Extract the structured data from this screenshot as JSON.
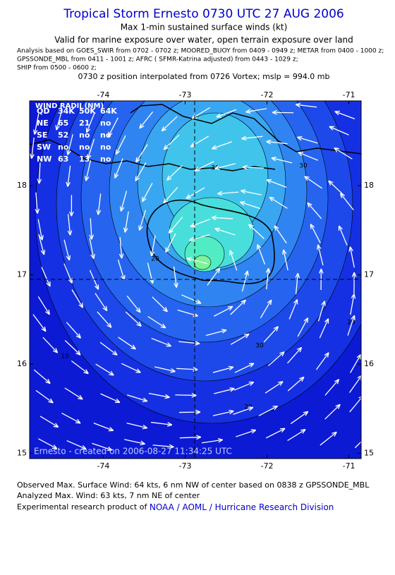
{
  "header": {
    "title": "Tropical Storm Ernesto 0730 UTC 27 AUG 2006",
    "subtitle": "Max 1-min sustained surface winds (kt)",
    "valid": "Valid for marine exposure over water, open terrain exposure over land",
    "analysis": [
      "Analysis based on  GOES_SWIR from 0702 - 0702 z;  MOORED_BUOY from 0409 - 0949 z;  METAR from 0400 - 1000 z;",
      "GPSSONDE_MBL from 0411 - 1001 z;  AFRC ( SFMR-Katrina adjusted) from 0443 - 1029 z;",
      "SHIP from 0500 - 0600 z;"
    ],
    "position": "0730 z position interpolated from 0726 Vortex; mslp = 994.0 mb"
  },
  "map": {
    "xlim": [
      -74.9,
      -70.85
    ],
    "ylim": [
      14.94,
      18.95
    ],
    "xticks": [
      -74,
      -73,
      -72,
      -71
    ],
    "yticks": [
      18,
      17,
      16,
      15
    ],
    "contour_labels": [
      "30",
      "20",
      "30",
      "20",
      "10",
      "20",
      "30"
    ],
    "credit": "Ernesto - created on 2006-08-27 11:34:25 UTC"
  },
  "wind_radii": {
    "title": "WIND RADII (NM)",
    "header": [
      "QD",
      "34K",
      "50K",
      "64K"
    ],
    "rows": [
      [
        "NE",
        "65",
        "21",
        "no"
      ],
      [
        "SE",
        "52",
        "no",
        "no"
      ],
      [
        "SW",
        "no",
        "no",
        "no"
      ],
      [
        "NW",
        "63",
        "13",
        "no"
      ]
    ]
  },
  "footer": {
    "observed": "Observed Max. Surface Wind: 64 kts, 6 nm NW of center based on 0838 z GPSSONDE_MBL",
    "analyzed": "Analyzed Max. Wind: 63 kts, 7 nm NE of center",
    "product": "Experimental research product of ",
    "link": "NOAA / AOML / Hurricane Research Division"
  }
}
